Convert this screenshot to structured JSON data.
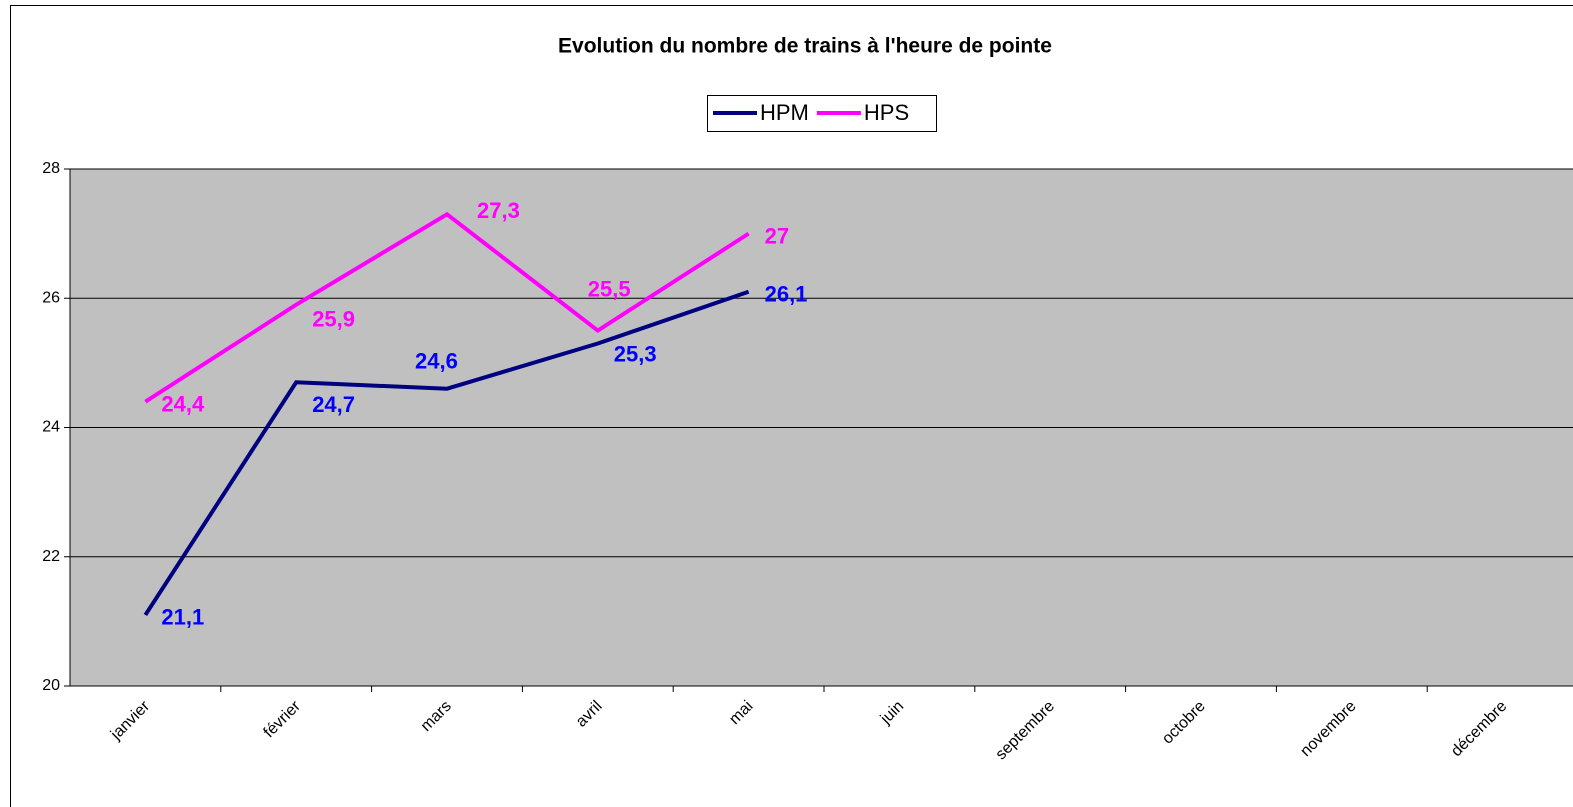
{
  "chart_data": {
    "type": "line",
    "title": "Evolution du nombre de trains à l'heure de pointe",
    "categories": [
      "janvier",
      "février",
      "mars",
      "avril",
      "mai",
      "juin",
      "septembre",
      "octobre",
      "novembre",
      "décembre"
    ],
    "series": [
      {
        "name": "HPM",
        "color": "#000080",
        "label_color": "#0000ff",
        "values": [
          21.1,
          24.7,
          24.6,
          25.3,
          26.1,
          null,
          null,
          null,
          null,
          null
        ],
        "value_labels": [
          "21,1",
          "24,7",
          "24,6",
          "25,3",
          "26,1",
          null,
          null,
          null,
          null,
          null
        ]
      },
      {
        "name": "HPS",
        "color": "#ff00ff",
        "label_color": "#ff00ff",
        "values": [
          24.4,
          25.9,
          27.3,
          25.5,
          27,
          null,
          null,
          null,
          null,
          null
        ],
        "value_labels": [
          "24,4",
          "25,9",
          "27,3",
          "25,5",
          "27",
          null,
          null,
          null,
          null,
          null
        ]
      }
    ],
    "ylim": [
      20,
      28
    ],
    "yticks": [
      20,
      22,
      24,
      26,
      28
    ],
    "grid": true,
    "legend": "top"
  }
}
